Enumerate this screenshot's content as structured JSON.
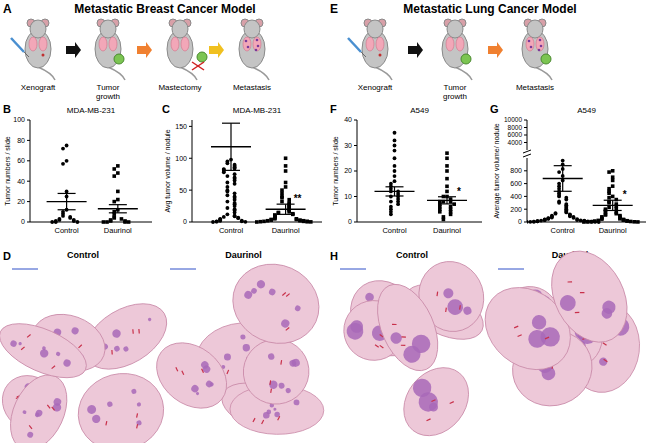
{
  "figure": {
    "panels": [
      {
        "label": "A",
        "title": "Metastatic Breast Cancer Model",
        "steps": [
          "Xenograft",
          "Tumor growth",
          "Mastectomy",
          "Metastasis"
        ]
      },
      {
        "label": "E",
        "title": "Metastatic Lung Cancer Model",
        "steps": [
          "Xenograft",
          "Tumor growth",
          "Metastasis"
        ]
      },
      {
        "label": "D",
        "images": [
          "Control",
          "Daurinol"
        ]
      },
      {
        "label": "H",
        "images": [
          "Control",
          "Daurinol"
        ]
      }
    ]
  },
  "chart_data": [
    {
      "panel": "B",
      "type": "scatter",
      "title": "MDA-MB-231",
      "ylabel": "Tumor numbers / slide",
      "ylim": [
        0,
        100
      ],
      "yticks": [
        0,
        20,
        40,
        60,
        80,
        100
      ],
      "series": [
        {
          "name": "Control",
          "marker": "circle",
          "color": "#000000",
          "mean": 20,
          "error": 8,
          "values": [
            75,
            72,
            60,
            57,
            30,
            25,
            12,
            10,
            8,
            6,
            5,
            4,
            3,
            2,
            2,
            1,
            1,
            0,
            0,
            0
          ]
        },
        {
          "name": "Daurinol",
          "marker": "square",
          "color": "#000000",
          "mean": 13,
          "error": 4,
          "values": [
            55,
            52,
            48,
            45,
            30,
            22,
            20,
            12,
            10,
            8,
            5,
            4,
            3,
            2,
            1,
            1,
            0,
            0,
            0,
            0
          ]
        }
      ]
    },
    {
      "panel": "C",
      "type": "scatter",
      "title": "MDA-MB-231",
      "ylabel": "Avg tumor volume / nodule",
      "ylim": [
        0,
        160
      ],
      "yticks": [
        0,
        50,
        100,
        150
      ],
      "series": [
        {
          "name": "Control",
          "marker": "circle",
          "color": "#000000",
          "mean": 118,
          "error": 37,
          "values": [
            98,
            95,
            92,
            90,
            88,
            86,
            84,
            83,
            82,
            80,
            78,
            75,
            72,
            70,
            68,
            65,
            62,
            60,
            55,
            50,
            48,
            45,
            42,
            40,
            38,
            35,
            32,
            30,
            28,
            25,
            22,
            20,
            18,
            15,
            12,
            10,
            9,
            8,
            7,
            6,
            5,
            4,
            3,
            2,
            2,
            1,
            1,
            0.5,
            0.3,
            0
          ]
        },
        {
          "name": "Daurinol",
          "marker": "square",
          "color": "#000000",
          "mean": 20,
          "error": 8,
          "annotation": "**",
          "values": [
            100,
            88,
            80,
            62,
            55,
            50,
            45,
            40,
            38,
            35,
            32,
            30,
            28,
            26,
            24,
            22,
            20,
            18,
            16,
            15,
            14,
            13,
            12,
            11,
            10,
            9,
            8,
            7,
            6,
            5,
            5,
            4,
            4,
            3,
            3,
            2,
            2,
            2,
            1,
            1,
            1,
            0.5,
            0.5,
            0.2,
            0
          ]
        }
      ]
    },
    {
      "panel": "F",
      "type": "scatter",
      "title": "A549",
      "ylabel": "Tumor numbers / slide",
      "ylim": [
        0,
        40
      ],
      "yticks": [
        0,
        10,
        20,
        30,
        40
      ],
      "series": [
        {
          "name": "Control",
          "marker": "circle",
          "color": "#000000",
          "mean": 12,
          "error": 1.8,
          "values": [
            35,
            32,
            30,
            28,
            25,
            22,
            20,
            18,
            16,
            15,
            14,
            13,
            12,
            12,
            11,
            10,
            10,
            9,
            8,
            8,
            7,
            6,
            5,
            4,
            3
          ]
        },
        {
          "name": "Daurinol",
          "marker": "square",
          "color": "#000000",
          "mean": 8.5,
          "error": 1.4,
          "annotation": "*",
          "values": [
            27,
            25,
            22,
            20,
            17,
            14,
            12,
            10,
            10,
            9,
            8,
            8,
            8,
            7,
            7,
            6,
            6,
            5,
            5,
            4,
            4,
            3,
            2,
            1
          ]
        }
      ]
    },
    {
      "panel": "G",
      "type": "scatter",
      "title": "A549",
      "ylabel": "Average tumor volume/ nodule",
      "ylim": [
        0,
        1000
      ],
      "yticks": [
        0,
        200,
        400,
        600,
        800
      ],
      "upper_ylim": [
        2000,
        10000
      ],
      "upper_yticks": [
        4000,
        6000,
        8000,
        10000
      ],
      "series": [
        {
          "name": "Control",
          "marker": "circle",
          "color": "#000000",
          "mean": 680,
          "error": 200,
          "values": [
            960,
            900,
            830,
            780,
            720,
            650,
            600,
            560,
            520,
            480,
            450,
            420,
            400,
            380,
            350,
            320,
            300,
            280,
            260,
            240,
            220,
            200,
            180,
            160,
            150,
            140,
            130,
            120,
            110,
            100,
            90,
            85,
            80,
            70,
            65,
            60,
            55,
            50,
            45,
            40,
            35,
            30,
            28,
            25,
            22,
            20,
            18,
            15,
            12,
            10,
            8,
            6,
            5,
            4,
            3,
            2,
            1,
            0
          ]
        },
        {
          "name": "Daurinol",
          "marker": "square",
          "color": "#000000",
          "mean": 260,
          "error": 80,
          "annotation": "*",
          "values": [
            800,
            780,
            700,
            650,
            560,
            520,
            480,
            450,
            400,
            380,
            350,
            320,
            300,
            280,
            250,
            230,
            210,
            200,
            180,
            160,
            150,
            130,
            120,
            110,
            100,
            90,
            80,
            70,
            60,
            50,
            45,
            40,
            35,
            30,
            25,
            20,
            15,
            12,
            10,
            8,
            5,
            3,
            2,
            1,
            0
          ]
        }
      ]
    }
  ]
}
